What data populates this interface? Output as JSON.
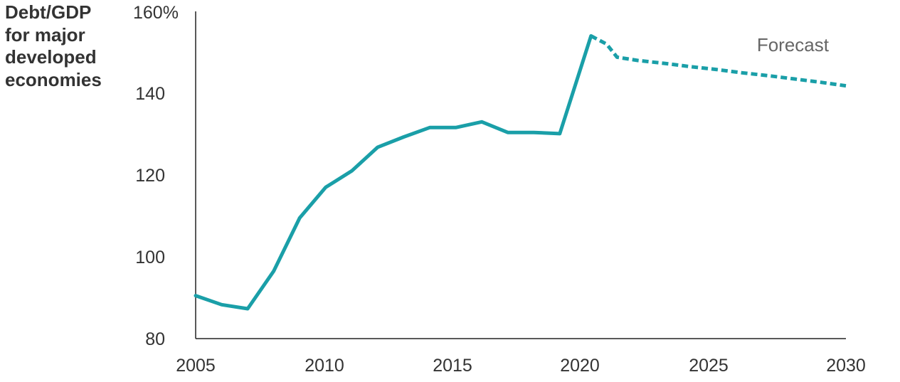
{
  "chart_data": {
    "type": "line",
    "title_lines": [
      "Debt/GDP",
      "for major",
      "developed",
      "economies"
    ],
    "xlabel": "",
    "ylabel": "",
    "xlim": [
      2005,
      2030
    ],
    "ylim": [
      80,
      160
    ],
    "x_ticks": [
      "2005",
      "2010",
      "2015",
      "2020",
      "2025",
      "2030"
    ],
    "y_ticks": [
      "80",
      "100",
      "120",
      "140",
      "160%"
    ],
    "grid": false,
    "color": "#1a9fa8",
    "annotation": "Forecast",
    "series": [
      {
        "style": "solid",
        "x": [
          2005,
          2006,
          2007,
          2008,
          2009,
          2010,
          2011,
          2012,
          2013,
          2014,
          2015,
          2016,
          2017,
          2018,
          2019,
          2020.2
        ],
        "values": [
          90.5,
          88.3,
          87.3,
          96.5,
          109.5,
          117.0,
          121.0,
          126.8,
          129.3,
          131.6,
          131.6,
          133.0,
          130.4,
          130.4,
          130.1,
          154.0
        ]
      },
      {
        "style": "dashed",
        "x": [
          2020.2,
          2020.8,
          2021.2,
          2022,
          2023,
          2024,
          2025,
          2026,
          2027,
          2028,
          2029,
          2030
        ],
        "values": [
          154.0,
          152.0,
          148.8,
          148.0,
          147.3,
          146.5,
          145.8,
          145.0,
          144.3,
          143.5,
          142.7,
          141.8
        ]
      }
    ]
  }
}
